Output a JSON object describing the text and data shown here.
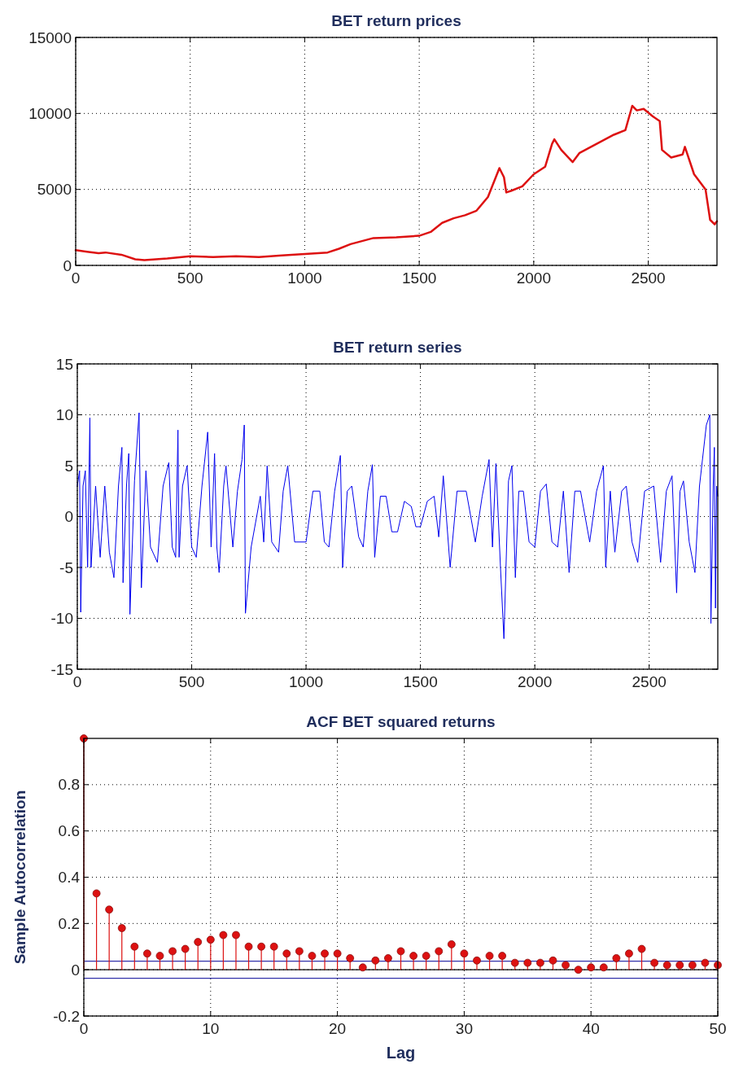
{
  "chart_data": [
    {
      "type": "line",
      "title": "BET return prices",
      "xlim": [
        0,
        2800
      ],
      "xticks": [
        0,
        500,
        1000,
        1500,
        2000,
        2500
      ],
      "ylim": [
        0,
        15000
      ],
      "yticks": [
        0,
        5000,
        10000,
        15000
      ],
      "grid": true,
      "line_style": "solid",
      "series": [
        {
          "color": "#dd1111",
          "x": [
            0,
            50,
            100,
            130,
            200,
            260,
            300,
            400,
            500,
            600,
            700,
            800,
            900,
            1000,
            1100,
            1150,
            1200,
            1250,
            1300,
            1400,
            1500,
            1550,
            1600,
            1650,
            1700,
            1750,
            1800,
            1850,
            1870,
            1880,
            1900,
            1950,
            2000,
            2050,
            2080,
            2090,
            2120,
            2170,
            2200,
            2250,
            2300,
            2350,
            2400,
            2430,
            2450,
            2480,
            2520,
            2550,
            2560,
            2600,
            2650,
            2660,
            2700,
            2750,
            2770,
            2790,
            2800
          ],
          "values": [
            1000,
            900,
            800,
            850,
            700,
            400,
            350,
            450,
            600,
            550,
            600,
            550,
            650,
            750,
            850,
            1100,
            1400,
            1600,
            1800,
            1850,
            1950,
            2200,
            2800,
            3100,
            3300,
            3600,
            4500,
            6400,
            5800,
            4800,
            4900,
            5200,
            6000,
            6500,
            8000,
            8300,
            7600,
            6800,
            7400,
            7800,
            8200,
            8600,
            8900,
            10500,
            10200,
            10300,
            9800,
            9500,
            7600,
            7100,
            7300,
            7800,
            6000,
            5000,
            3000,
            2700,
            2900
          ]
        }
      ]
    },
    {
      "type": "line",
      "title": "BET return series",
      "xlim": [
        0,
        2800
      ],
      "xticks": [
        0,
        500,
        1000,
        1500,
        2000,
        2500
      ],
      "ylim": [
        -15,
        15
      ],
      "yticks": [
        -15,
        -10,
        -5,
        0,
        5,
        10,
        15
      ],
      "grid": true,
      "line_style": "solid",
      "series": [
        {
          "color": "#0000ee",
          "x": [
            0,
            10,
            15,
            25,
            35,
            45,
            55,
            60,
            80,
            100,
            120,
            140,
            160,
            180,
            195,
            200,
            215,
            225,
            230,
            250,
            270,
            280,
            300,
            320,
            350,
            375,
            400,
            415,
            430,
            440,
            445,
            460,
            480,
            500,
            520,
            545,
            570,
            585,
            600,
            610,
            620,
            640,
            650,
            680,
            700,
            720,
            730,
            735,
            760,
            800,
            815,
            830,
            850,
            880,
            900,
            920,
            950,
            1000,
            1030,
            1060,
            1080,
            1100,
            1125,
            1150,
            1160,
            1180,
            1200,
            1230,
            1250,
            1270,
            1290,
            1300,
            1325,
            1350,
            1375,
            1400,
            1430,
            1460,
            1480,
            1500,
            1530,
            1560,
            1580,
            1600,
            1630,
            1660,
            1700,
            1740,
            1770,
            1800,
            1815,
            1830,
            1850,
            1865,
            1885,
            1900,
            1915,
            1930,
            1950,
            1975,
            2000,
            2025,
            2050,
            2075,
            2100,
            2125,
            2150,
            2175,
            2200,
            2240,
            2270,
            2300,
            2310,
            2330,
            2350,
            2380,
            2400,
            2425,
            2450,
            2480,
            2520,
            2550,
            2575,
            2600,
            2620,
            2635,
            2650,
            2675,
            2700,
            2720,
            2750,
            2765,
            2770,
            2780,
            2785,
            2790,
            2795,
            2800
          ],
          "values": [
            3,
            4.5,
            -9.4,
            3,
            4.5,
            -5,
            9.7,
            -5,
            3,
            -4,
            3,
            -3.5,
            -6,
            3,
            6.8,
            -6.5,
            3,
            6.2,
            -9.6,
            3.5,
            10.2,
            -7,
            4.5,
            -3,
            -4.5,
            3,
            5.3,
            -3,
            -4,
            8.5,
            -4,
            3,
            5,
            -3,
            -4,
            3,
            8.3,
            -3,
            6.2,
            -3,
            -5.5,
            3,
            5,
            -3,
            2.5,
            5.6,
            9,
            -9.5,
            -3,
            2,
            -2.5,
            5,
            -2.5,
            -3.5,
            2.5,
            5,
            -2.5,
            -2.5,
            2.5,
            2.5,
            -2.5,
            -3,
            2.5,
            6,
            -5,
            2.5,
            3,
            -2,
            -3,
            2.5,
            5.1,
            -4,
            2,
            2,
            -1.5,
            -1.5,
            1.5,
            1,
            -1,
            -1,
            1.5,
            2,
            -2,
            4,
            -5,
            2.5,
            2.5,
            -2.5,
            2,
            5.6,
            -3,
            5.2,
            -5,
            -12,
            3.5,
            5,
            -6,
            2.5,
            2.5,
            -2.5,
            -3,
            2.5,
            3.2,
            -2.5,
            -3,
            2.5,
            -5.5,
            2.5,
            2.5,
            -2.5,
            2.5,
            5,
            -5,
            2.5,
            -3.5,
            2.5,
            3,
            -2.5,
            -4.5,
            2.5,
            3,
            -4.5,
            2.5,
            4,
            -7.5,
            2.5,
            3.5,
            -2.5,
            -5.5,
            3,
            9,
            10,
            -10.5,
            3,
            6.8,
            -9,
            3,
            2
          ]
        }
      ]
    },
    {
      "type": "lollipop",
      "title": "ACF BET squared returns",
      "xlabel": "Lag",
      "ylabel": "Sample Autocorrelation",
      "xlim": [
        0,
        50
      ],
      "xticks": [
        0,
        10,
        20,
        30,
        40,
        50
      ],
      "ylim": [
        -0.2,
        1
      ],
      "yticks": [
        -0.2,
        0,
        0.2,
        0.4,
        0.6,
        0.8
      ],
      "grid": true,
      "marker": "circle",
      "ref_lines": [
        {
          "axis": "y",
          "value": 0,
          "color": "#000000"
        },
        {
          "axis": "y",
          "value": 0.037,
          "color": "#3333aa"
        },
        {
          "axis": "y",
          "value": -0.037,
          "color": "#3333aa"
        }
      ],
      "series": [
        {
          "color": "#dd1111",
          "x": [
            0,
            1,
            2,
            3,
            4,
            5,
            6,
            7,
            8,
            9,
            10,
            11,
            12,
            13,
            14,
            15,
            16,
            17,
            18,
            19,
            20,
            21,
            22,
            23,
            24,
            25,
            26,
            27,
            28,
            29,
            30,
            31,
            32,
            33,
            34,
            35,
            36,
            37,
            38,
            39,
            40,
            41,
            42,
            43,
            44,
            45,
            46,
            47,
            48,
            49,
            50
          ],
          "values": [
            1.0,
            0.33,
            0.26,
            0.18,
            0.1,
            0.07,
            0.06,
            0.08,
            0.09,
            0.12,
            0.13,
            0.15,
            0.15,
            0.1,
            0.1,
            0.1,
            0.07,
            0.08,
            0.06,
            0.07,
            0.07,
            0.05,
            0.01,
            0.04,
            0.05,
            0.08,
            0.06,
            0.06,
            0.08,
            0.11,
            0.07,
            0.04,
            0.06,
            0.06,
            0.03,
            0.03,
            0.03,
            0.04,
            0.02,
            0.0,
            0.01,
            0.01,
            0.05,
            0.07,
            0.09,
            0.03,
            0.02,
            0.02,
            0.02,
            0.03,
            0.02
          ]
        }
      ]
    }
  ]
}
